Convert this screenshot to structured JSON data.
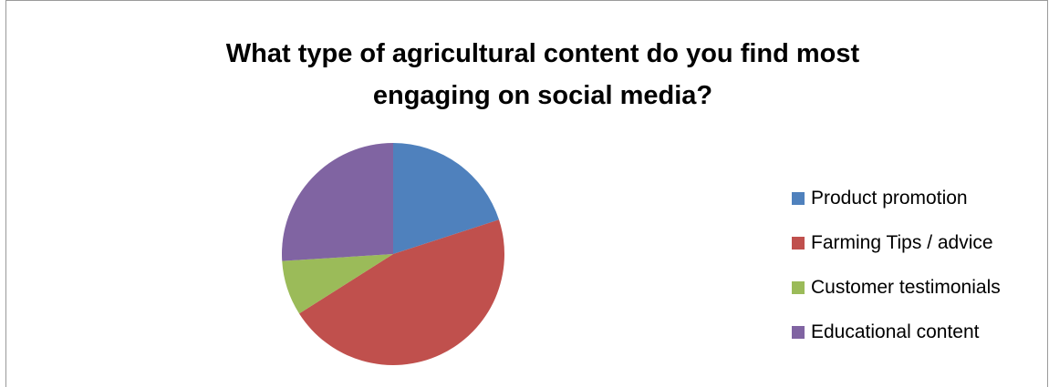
{
  "chart_data": {
    "type": "pie",
    "title": "What type of agricultural content do you find most engaging on social media?",
    "categories": [
      "Product promotion",
      "Farming Tips / advice",
      "Customer testimonials",
      "Educational content"
    ],
    "values": [
      20,
      46,
      8,
      26
    ],
    "colors": [
      "#4F81BD",
      "#C0504D",
      "#9BBB59",
      "#8064A2"
    ],
    "legend_position": "right"
  }
}
